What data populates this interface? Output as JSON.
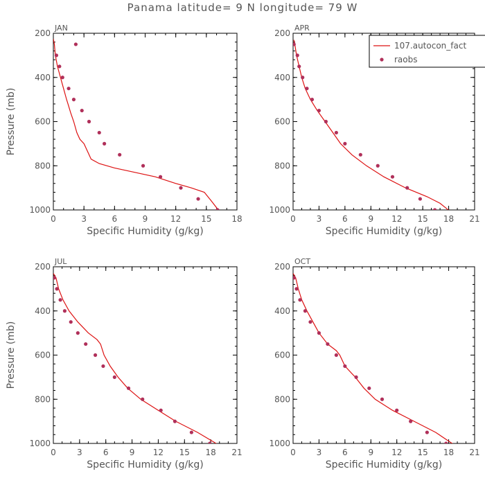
{
  "title": "Panama  latitude= 9 N longitude= 79 W",
  "colors": {
    "model": "#dd1111",
    "obs": "#b0305a",
    "axis": "#000000",
    "text": "#555555"
  },
  "legend": {
    "model_label": "107.autocon_fact",
    "obs_label": "raobs"
  },
  "chart_data": [
    {
      "type": "line",
      "panel_label": "JAN",
      "xlabel": "Specific Humidity (g/kg)",
      "ylabel": "Pressure (mb)",
      "xlim": [
        0,
        18
      ],
      "ylim": [
        1000,
        200
      ],
      "xticks": [
        0,
        3,
        6,
        9,
        12,
        15,
        18
      ],
      "yticks": [
        200,
        400,
        600,
        800,
        1000
      ],
      "series": [
        {
          "name": "107.autocon_fact",
          "kind": "line",
          "points": [
            [
              0.0,
              225
            ],
            [
              0.1,
              250
            ],
            [
              0.2,
              300
            ],
            [
              0.4,
              350
            ],
            [
              0.7,
              400
            ],
            [
              1.0,
              450
            ],
            [
              1.3,
              500
            ],
            [
              1.5,
              530
            ],
            [
              1.7,
              560
            ],
            [
              2.0,
              600
            ],
            [
              2.3,
              650
            ],
            [
              2.6,
              680
            ],
            [
              3.0,
              700
            ],
            [
              3.4,
              740
            ],
            [
              3.7,
              770
            ],
            [
              4.5,
              790
            ],
            [
              6.0,
              810
            ],
            [
              8.0,
              830
            ],
            [
              10.0,
              850
            ],
            [
              12.0,
              880
            ],
            [
              13.5,
              900
            ],
            [
              14.8,
              920
            ],
            [
              15.5,
              960
            ],
            [
              16.0,
              990
            ],
            [
              16.3,
              1005
            ]
          ]
        },
        {
          "name": "raobs",
          "kind": "scatter",
          "points": [
            [
              2.2,
              250
            ],
            [
              0.3,
              300
            ],
            [
              0.6,
              350
            ],
            [
              0.9,
              400
            ],
            [
              1.5,
              450
            ],
            [
              2.0,
              500
            ],
            [
              2.8,
              550
            ],
            [
              3.5,
              600
            ],
            [
              4.5,
              650
            ],
            [
              5.0,
              700
            ],
            [
              6.5,
              750
            ],
            [
              8.8,
              800
            ],
            [
              10.5,
              850
            ],
            [
              12.5,
              900
            ],
            [
              14.2,
              950
            ],
            [
              16.1,
              1000
            ]
          ]
        }
      ]
    },
    {
      "type": "line",
      "panel_label": "APR",
      "xlabel": "Specific Humidity (g/kg)",
      "ylabel": "",
      "xlim": [
        0,
        21
      ],
      "ylim": [
        1000,
        200
      ],
      "xticks": [
        0,
        3,
        6,
        9,
        12,
        15,
        18,
        21
      ],
      "yticks": [
        200,
        400,
        600,
        800,
        1000
      ],
      "series": [
        {
          "name": "107.autocon_fact",
          "kind": "line",
          "points": [
            [
              0.1,
              230
            ],
            [
              0.2,
              250
            ],
            [
              0.4,
              300
            ],
            [
              0.7,
              350
            ],
            [
              1.0,
              400
            ],
            [
              1.4,
              450
            ],
            [
              2.0,
              500
            ],
            [
              2.8,
              550
            ],
            [
              3.7,
              600
            ],
            [
              4.6,
              650
            ],
            [
              5.5,
              700
            ],
            [
              6.8,
              750
            ],
            [
              8.5,
              800
            ],
            [
              10.5,
              850
            ],
            [
              13.0,
              900
            ],
            [
              15.5,
              940
            ],
            [
              17.0,
              970
            ],
            [
              17.8,
              995
            ],
            [
              18.1,
              1005
            ]
          ]
        },
        {
          "name": "raobs",
          "kind": "scatter",
          "points": [
            [
              0.1,
              250
            ],
            [
              0.5,
              300
            ],
            [
              0.7,
              350
            ],
            [
              1.1,
              400
            ],
            [
              1.6,
              450
            ],
            [
              2.2,
              500
            ],
            [
              3.0,
              550
            ],
            [
              3.8,
              600
            ],
            [
              5.0,
              650
            ],
            [
              6.0,
              700
            ],
            [
              7.8,
              750
            ],
            [
              9.8,
              800
            ],
            [
              11.5,
              850
            ],
            [
              13.2,
              900
            ],
            [
              14.7,
              950
            ],
            [
              16.4,
              1000
            ]
          ]
        }
      ]
    },
    {
      "type": "line",
      "panel_label": "JUL",
      "xlabel": "Specific Humidity (g/kg)",
      "ylabel": "Pressure (mb)",
      "xlim": [
        0,
        21
      ],
      "ylim": [
        1000,
        200
      ],
      "xticks": [
        0,
        3,
        6,
        9,
        12,
        15,
        18,
        21
      ],
      "yticks": [
        200,
        400,
        600,
        800,
        1000
      ],
      "series": [
        {
          "name": "107.autocon_fact",
          "kind": "line",
          "points": [
            [
              0.0,
              230
            ],
            [
              0.3,
              250
            ],
            [
              0.6,
              300
            ],
            [
              1.1,
              350
            ],
            [
              1.8,
              400
            ],
            [
              2.8,
              450
            ],
            [
              4.0,
              500
            ],
            [
              5.0,
              530
            ],
            [
              5.4,
              550
            ],
            [
              5.8,
              600
            ],
            [
              6.5,
              650
            ],
            [
              7.4,
              700
            ],
            [
              8.5,
              750
            ],
            [
              10.0,
              800
            ],
            [
              12.0,
              850
            ],
            [
              14.0,
              900
            ],
            [
              16.5,
              950
            ],
            [
              18.4,
              995
            ],
            [
              18.8,
              1005
            ]
          ]
        },
        {
          "name": "raobs",
          "kind": "scatter",
          "points": [
            [
              0.1,
              250
            ],
            [
              0.4,
              300
            ],
            [
              0.8,
              350
            ],
            [
              1.3,
              400
            ],
            [
              2.0,
              450
            ],
            [
              2.8,
              500
            ],
            [
              3.7,
              550
            ],
            [
              4.8,
              600
            ],
            [
              5.7,
              650
            ],
            [
              7.0,
              700
            ],
            [
              8.6,
              750
            ],
            [
              10.2,
              800
            ],
            [
              12.3,
              850
            ],
            [
              13.9,
              900
            ],
            [
              15.8,
              950
            ],
            [
              17.9,
              1000
            ]
          ]
        }
      ]
    },
    {
      "type": "line",
      "panel_label": "OCT",
      "xlabel": "Specific Humidity (g/kg)",
      "ylabel": "",
      "xlim": [
        0,
        21
      ],
      "ylim": [
        1000,
        200
      ],
      "xticks": [
        0,
        3,
        6,
        9,
        12,
        15,
        18,
        21
      ],
      "yticks": [
        200,
        400,
        600,
        800,
        1000
      ],
      "series": [
        {
          "name": "107.autocon_fact",
          "kind": "line",
          "points": [
            [
              0.0,
              230
            ],
            [
              0.3,
              250
            ],
            [
              0.6,
              300
            ],
            [
              1.0,
              350
            ],
            [
              1.6,
              400
            ],
            [
              2.3,
              450
            ],
            [
              3.0,
              500
            ],
            [
              4.0,
              550
            ],
            [
              5.0,
              580
            ],
            [
              5.4,
              600
            ],
            [
              6.0,
              650
            ],
            [
              7.2,
              700
            ],
            [
              8.2,
              750
            ],
            [
              9.5,
              800
            ],
            [
              11.5,
              850
            ],
            [
              14.0,
              900
            ],
            [
              16.5,
              950
            ],
            [
              18.2,
              995
            ],
            [
              18.6,
              1005
            ]
          ]
        },
        {
          "name": "raobs",
          "kind": "scatter",
          "points": [
            [
              0.1,
              250
            ],
            [
              0.4,
              300
            ],
            [
              0.8,
              350
            ],
            [
              1.4,
              400
            ],
            [
              2.0,
              450
            ],
            [
              3.0,
              500
            ],
            [
              4.0,
              550
            ],
            [
              5.0,
              600
            ],
            [
              6.0,
              650
            ],
            [
              7.3,
              700
            ],
            [
              8.8,
              750
            ],
            [
              10.3,
              800
            ],
            [
              12.0,
              850
            ],
            [
              13.6,
              900
            ],
            [
              15.5,
              950
            ],
            [
              17.7,
              1000
            ]
          ]
        }
      ]
    }
  ]
}
